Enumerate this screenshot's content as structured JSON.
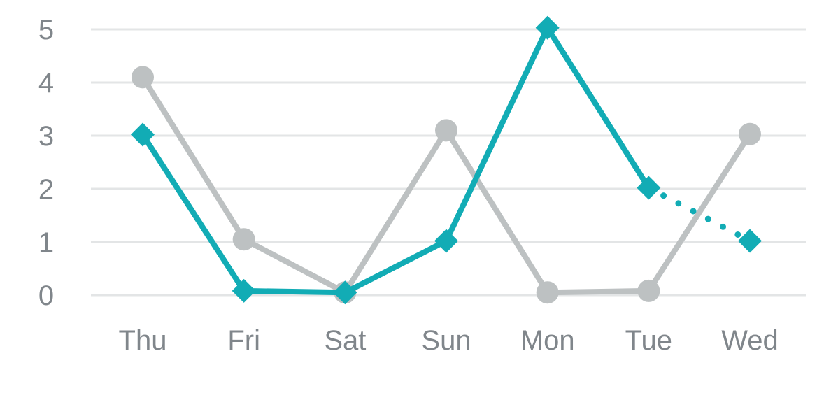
{
  "chart_data": {
    "type": "line",
    "categories": [
      "Thu",
      "Fri",
      "Sat",
      "Sun",
      "Mon",
      "Tue",
      "Wed"
    ],
    "series": [
      {
        "values": [
          4.1,
          1.05,
          0.05,
          3.1,
          0.05,
          0.08,
          3.03
        ],
        "color": "#bdc1c2",
        "marker": "circle"
      },
      {
        "values": [
          3.02,
          0.08,
          0.05,
          1.02,
          5.03,
          2.02,
          1.02
        ],
        "color": "#12acb5",
        "marker": "diamond",
        "dotted_from_index": 5
      }
    ],
    "yticks": [
      "0",
      "1",
      "2",
      "3",
      "4",
      "5"
    ],
    "ylim": [
      0,
      5
    ],
    "grid": true,
    "legend": "none"
  }
}
